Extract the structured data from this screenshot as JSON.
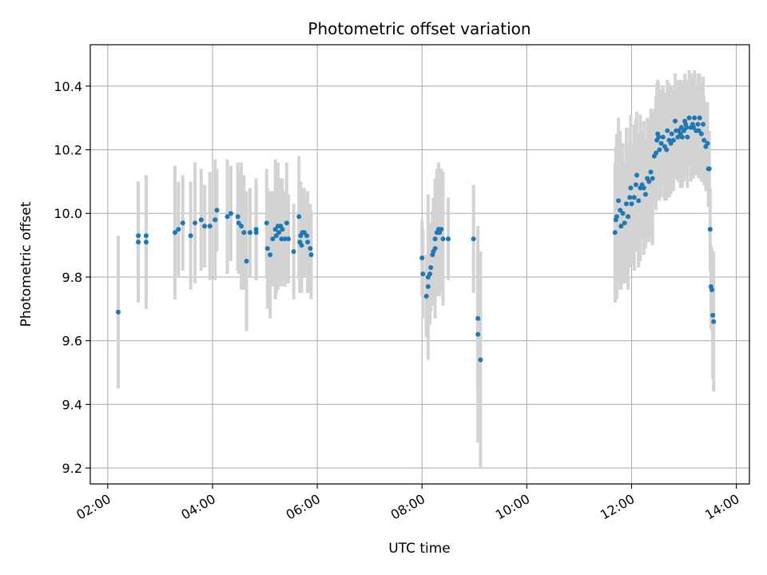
{
  "chart_data": {
    "type": "scatter",
    "title": "Photometric offset variation",
    "xlabel": "UTC time",
    "ylabel": "Photometric offset",
    "xlim": [
      "01:40",
      "14:15"
    ],
    "ylim": [
      9.15,
      10.53
    ],
    "x_ticks": [
      "02:00",
      "04:00",
      "06:00",
      "08:00",
      "10:00",
      "12:00",
      "14:00"
    ],
    "y_ticks": [
      9.2,
      9.4,
      9.6,
      9.8,
      10.0,
      10.2,
      10.4
    ],
    "grid": true,
    "colors": {
      "points": "#1f77b4",
      "errorbars": "#d3d3d3",
      "grid": "#b0b0b0"
    },
    "series": [
      {
        "points": [
          {
            "x": "02:12",
            "y": 9.69,
            "err": 0.24
          },
          {
            "x": "02:35",
            "y": 9.91,
            "err": 0.19
          },
          {
            "x": "02:35",
            "y": 9.93,
            "err": 0.17
          },
          {
            "x": "02:44",
            "y": 9.93,
            "err": 0.19
          },
          {
            "x": "02:44",
            "y": 9.91,
            "err": 0.21
          },
          {
            "x": "03:17",
            "y": 9.94,
            "err": 0.21
          },
          {
            "x": "03:21",
            "y": 9.95,
            "err": 0.15
          },
          {
            "x": "03:26",
            "y": 9.97,
            "err": 0.15
          },
          {
            "x": "03:35",
            "y": 9.93,
            "err": 0.17
          },
          {
            "x": "03:40",
            "y": 9.97,
            "err": 0.19
          },
          {
            "x": "03:47",
            "y": 9.98,
            "err": 0.16
          },
          {
            "x": "03:51",
            "y": 9.96,
            "err": 0.13
          },
          {
            "x": "03:57",
            "y": 9.96,
            "err": 0.17
          },
          {
            "x": "04:03",
            "y": 9.98,
            "err": 0.19
          },
          {
            "x": "04:05",
            "y": 10.01,
            "err": 0.13
          },
          {
            "x": "04:17",
            "y": 9.99,
            "err": 0.18
          },
          {
            "x": "04:21",
            "y": 10.0,
            "err": 0.15
          },
          {
            "x": "04:29",
            "y": 9.99,
            "err": 0.17
          },
          {
            "x": "04:30",
            "y": 9.97,
            "err": 0.16
          },
          {
            "x": "04:33",
            "y": 9.96,
            "err": 0.2
          },
          {
            "x": "04:36",
            "y": 9.94,
            "err": 0.18
          },
          {
            "x": "04:39",
            "y": 9.85,
            "err": 0.22
          },
          {
            "x": "04:43",
            "y": 9.94,
            "err": 0.14
          },
          {
            "x": "04:50",
            "y": 9.95,
            "err": 0.16
          },
          {
            "x": "04:50",
            "y": 9.94,
            "err": 0.15
          },
          {
            "x": "05:02",
            "y": 9.97,
            "err": 0.17
          },
          {
            "x": "05:03",
            "y": 9.89,
            "err": 0.19
          },
          {
            "x": "05:06",
            "y": 9.87,
            "err": 0.2
          },
          {
            "x": "05:09",
            "y": 9.92,
            "err": 0.15
          },
          {
            "x": "05:12",
            "y": 9.95,
            "err": 0.22
          },
          {
            "x": "05:13",
            "y": 9.93,
            "err": 0.18
          },
          {
            "x": "05:15",
            "y": 9.96,
            "err": 0.2
          },
          {
            "x": "05:16",
            "y": 9.94,
            "err": 0.16
          },
          {
            "x": "05:18",
            "y": 9.96,
            "err": 0.15
          },
          {
            "x": "05:19",
            "y": 9.92,
            "err": 0.15
          },
          {
            "x": "05:20",
            "y": 9.95,
            "err": 0.16
          },
          {
            "x": "05:23",
            "y": 9.92,
            "err": 0.15
          },
          {
            "x": "05:25",
            "y": 9.97,
            "err": 0.19
          },
          {
            "x": "05:27",
            "y": 9.92,
            "err": 0.14
          },
          {
            "x": "05:33",
            "y": 9.88,
            "err": 0.15
          },
          {
            "x": "05:39",
            "y": 9.99,
            "err": 0.19
          },
          {
            "x": "05:40",
            "y": 9.91,
            "err": 0.16
          },
          {
            "x": "05:41",
            "y": 9.93,
            "err": 0.17
          },
          {
            "x": "05:42",
            "y": 9.9,
            "err": 0.15
          },
          {
            "x": "05:43",
            "y": 9.94,
            "err": 0.14
          },
          {
            "x": "05:45",
            "y": 9.94,
            "err": 0.14
          },
          {
            "x": "05:48",
            "y": 9.93,
            "err": 0.12
          },
          {
            "x": "05:49",
            "y": 9.91,
            "err": 0.16
          },
          {
            "x": "05:52",
            "y": 9.89,
            "err": 0.14
          },
          {
            "x": "05:53",
            "y": 9.87,
            "err": 0.14
          },
          {
            "x": "08:00",
            "y": 9.86,
            "err": 0.12
          },
          {
            "x": "08:01",
            "y": 9.81,
            "err": 0.14
          },
          {
            "x": "08:05",
            "y": 9.74,
            "err": 0.13
          },
          {
            "x": "08:07",
            "y": 9.8,
            "err": 0.26
          },
          {
            "x": "08:07",
            "y": 9.77,
            "err": 0.1
          },
          {
            "x": "08:09",
            "y": 9.81,
            "err": 0.16
          },
          {
            "x": "08:10",
            "y": 9.83,
            "err": 0.14
          },
          {
            "x": "08:12",
            "y": 9.87,
            "err": 0.14
          },
          {
            "x": "08:13",
            "y": 9.88,
            "err": 0.17
          },
          {
            "x": "08:15",
            "y": 9.89,
            "err": 0.22
          },
          {
            "x": "08:15",
            "y": 9.92,
            "err": 0.17
          },
          {
            "x": "08:17",
            "y": 9.94,
            "err": 0.2
          },
          {
            "x": "08:19",
            "y": 9.95,
            "err": 0.21
          },
          {
            "x": "08:20",
            "y": 9.94,
            "err": 0.2
          },
          {
            "x": "08:22",
            "y": 9.95,
            "err": 0.19
          },
          {
            "x": "08:24",
            "y": 9.92,
            "err": 0.21
          },
          {
            "x": "08:30",
            "y": 9.92,
            "err": 0.13
          },
          {
            "x": "08:59",
            "y": 9.92,
            "err": 0.17
          },
          {
            "x": "09:04",
            "y": 9.67,
            "err": 0.23
          },
          {
            "x": "09:04",
            "y": 9.62,
            "err": 0.34
          },
          {
            "x": "09:07",
            "y": 9.54,
            "err": 0.34
          },
          {
            "x": "11:41",
            "y": 9.94,
            "err": 0.22
          },
          {
            "x": "11:42",
            "y": 9.98,
            "err": 0.23
          },
          {
            "x": "11:43",
            "y": 9.99,
            "err": 0.26
          },
          {
            "x": "11:45",
            "y": 10.04,
            "err": 0.26
          },
          {
            "x": "11:47",
            "y": 10.01,
            "err": 0.25
          },
          {
            "x": "11:48",
            "y": 9.96,
            "err": 0.2
          },
          {
            "x": "11:50",
            "y": 10.0,
            "err": 0.22
          },
          {
            "x": "11:52",
            "y": 9.97,
            "err": 0.19
          },
          {
            "x": "11:54",
            "y": 10.03,
            "err": 0.24
          },
          {
            "x": "11:56",
            "y": 9.99,
            "err": 0.23
          },
          {
            "x": "11:58",
            "y": 10.05,
            "err": 0.22
          },
          {
            "x": "11:59",
            "y": 10.08,
            "err": 0.23
          },
          {
            "x": "12:00",
            "y": 10.03,
            "err": 0.19
          },
          {
            "x": "12:03",
            "y": 10.05,
            "err": 0.23
          },
          {
            "x": "12:05",
            "y": 10.09,
            "err": 0.21
          },
          {
            "x": "12:06",
            "y": 10.12,
            "err": 0.2
          },
          {
            "x": "12:08",
            "y": 10.04,
            "err": 0.21
          },
          {
            "x": "12:10",
            "y": 10.08,
            "err": 0.23
          },
          {
            "x": "12:12",
            "y": 10.09,
            "err": 0.17
          },
          {
            "x": "12:14",
            "y": 10.08,
            "err": 0.21
          },
          {
            "x": "12:16",
            "y": 10.06,
            "err": 0.17
          },
          {
            "x": "12:18",
            "y": 10.11,
            "err": 0.19
          },
          {
            "x": "12:20",
            "y": 10.1,
            "err": 0.19
          },
          {
            "x": "12:22",
            "y": 10.13,
            "err": 0.2
          },
          {
            "x": "12:24",
            "y": 10.11,
            "err": 0.21
          },
          {
            "x": "12:26",
            "y": 10.18,
            "err": 0.15
          },
          {
            "x": "12:28",
            "y": 10.19,
            "err": 0.18
          },
          {
            "x": "12:29",
            "y": 10.23,
            "err": 0.18
          },
          {
            "x": "12:30",
            "y": 10.25,
            "err": 0.17
          },
          {
            "x": "12:31",
            "y": 10.24,
            "err": 0.17
          },
          {
            "x": "12:32",
            "y": 10.2,
            "err": 0.16
          },
          {
            "x": "12:34",
            "y": 10.22,
            "err": 0.17
          },
          {
            "x": "12:36",
            "y": 10.24,
            "err": 0.16
          },
          {
            "x": "12:38",
            "y": 10.21,
            "err": 0.17
          },
          {
            "x": "12:40",
            "y": 10.2,
            "err": 0.16
          },
          {
            "x": "12:41",
            "y": 10.26,
            "err": 0.16
          },
          {
            "x": "12:43",
            "y": 10.23,
            "err": 0.18
          },
          {
            "x": "12:45",
            "y": 10.22,
            "err": 0.16
          },
          {
            "x": "12:46",
            "y": 10.25,
            "err": 0.15
          },
          {
            "x": "12:48",
            "y": 10.23,
            "err": 0.16
          },
          {
            "x": "12:50",
            "y": 10.29,
            "err": 0.15
          },
          {
            "x": "12:51",
            "y": 10.26,
            "err": 0.15
          },
          {
            "x": "12:53",
            "y": 10.24,
            "err": 0.14
          },
          {
            "x": "12:54",
            "y": 10.26,
            "err": 0.16
          },
          {
            "x": "12:56",
            "y": 10.25,
            "err": 0.17
          },
          {
            "x": "12:57",
            "y": 10.27,
            "err": 0.14
          },
          {
            "x": "12:58",
            "y": 10.24,
            "err": 0.16
          },
          {
            "x": "13:00",
            "y": 10.26,
            "err": 0.16
          },
          {
            "x": "13:01",
            "y": 10.29,
            "err": 0.15
          },
          {
            "x": "13:02",
            "y": 10.28,
            "err": 0.14
          },
          {
            "x": "13:03",
            "y": 10.27,
            "err": 0.15
          },
          {
            "x": "13:04",
            "y": 10.24,
            "err": 0.16
          },
          {
            "x": "13:06",
            "y": 10.3,
            "err": 0.15
          },
          {
            "x": "13:08",
            "y": 10.27,
            "err": 0.17
          },
          {
            "x": "13:10",
            "y": 10.28,
            "err": 0.15
          },
          {
            "x": "13:11",
            "y": 10.27,
            "err": 0.16
          },
          {
            "x": "13:12",
            "y": 10.3,
            "err": 0.15
          },
          {
            "x": "13:14",
            "y": 10.26,
            "err": 0.14
          },
          {
            "x": "13:16",
            "y": 10.28,
            "err": 0.16
          },
          {
            "x": "13:17",
            "y": 10.26,
            "err": 0.15
          },
          {
            "x": "13:18",
            "y": 10.3,
            "err": 0.14
          },
          {
            "x": "13:20",
            "y": 10.25,
            "err": 0.15
          },
          {
            "x": "13:22",
            "y": 10.28,
            "err": 0.15
          },
          {
            "x": "13:23",
            "y": 10.23,
            "err": 0.14
          },
          {
            "x": "13:25",
            "y": 10.21,
            "err": 0.14
          },
          {
            "x": "13:27",
            "y": 10.22,
            "err": 0.13
          },
          {
            "x": "13:28",
            "y": 10.14,
            "err": 0.12
          },
          {
            "x": "13:29",
            "y": 10.14,
            "err": 0.12
          },
          {
            "x": "13:30",
            "y": 9.95,
            "err": 0.13
          },
          {
            "x": "13:31",
            "y": 9.77,
            "err": 0.13
          },
          {
            "x": "13:32",
            "y": 9.76,
            "err": 0.13
          },
          {
            "x": "13:33",
            "y": 9.68,
            "err": 0.2
          },
          {
            "x": "13:34",
            "y": 9.66,
            "err": 0.22
          }
        ]
      }
    ]
  }
}
